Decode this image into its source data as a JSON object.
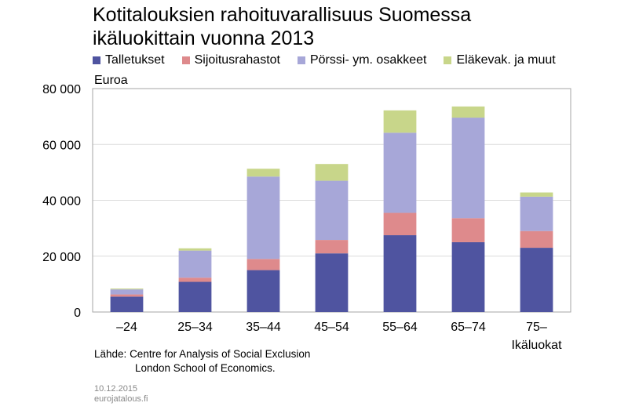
{
  "title_lines": [
    "Kotitalouksien rahoituvarallisuus Suomessa",
    "ikäluokittain vuonna 2013"
  ],
  "unit_label": "Euroa",
  "source": {
    "prefix": "Lähde:",
    "line1": "Centre for Analysis of Social Exclusion",
    "line2": "London School of Economics."
  },
  "footer": {
    "date": "10.12.2015",
    "site": "eurojatalous.fi"
  },
  "chart_data": {
    "type": "bar",
    "stacked": true,
    "title": "Kotitalouksien rahoituvarallisuus Suomessa ikäluokittain vuonna 2013",
    "ylabel": "Euroa",
    "xlabel": "Ikäluokat",
    "categories": [
      "–24",
      "25–34",
      "35–44",
      "45–54",
      "55–64",
      "65–74",
      "75–"
    ],
    "ylim": [
      0,
      80000
    ],
    "yticks": [
      0,
      20000,
      40000,
      60000,
      80000
    ],
    "ytick_labels": [
      "0",
      "20 000",
      "40 000",
      "60 000",
      "80 000"
    ],
    "grid": true,
    "legend_position": "top",
    "series": [
      {
        "name": "Talletukset",
        "color": "#4f54a0",
        "values": [
          5500,
          10800,
          15000,
          21000,
          27500,
          25000,
          23000
        ]
      },
      {
        "name": "Sijoitusrahastot",
        "color": "#de8a8c",
        "values": [
          800,
          1500,
          4000,
          4800,
          8000,
          8600,
          6000
        ]
      },
      {
        "name": "Pörssi- ym. osakkeet",
        "color": "#a7a7d8",
        "values": [
          1800,
          9700,
          29500,
          21200,
          28700,
          36000,
          12300
        ]
      },
      {
        "name": "Eläkevak. ja muut",
        "color": "#c8d68a",
        "values": [
          300,
          800,
          2800,
          6000,
          8000,
          4000,
          1500
        ]
      }
    ]
  }
}
